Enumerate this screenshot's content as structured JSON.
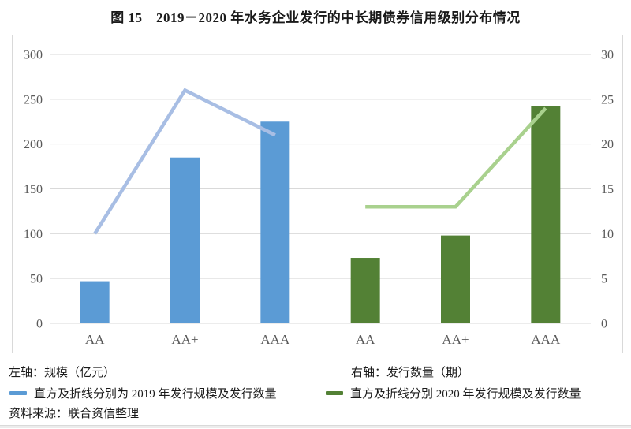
{
  "figure": {
    "title": "图 15　2019－2020 年水务企业发行的中长期债券信用级别分布情况",
    "left_axis_note": "左轴：规模（亿元）",
    "right_axis_note": "右轴：发行数量（期）",
    "source": "资料来源：联合资信整理"
  },
  "legend": {
    "items": [
      {
        "swatch_color": "#5b9bd5",
        "label": "直方及折线分别为 2019 年发行规模及发行数量"
      },
      {
        "swatch_color": "#538135",
        "label": "直方及折线分别 2020 年发行规模及发行数量"
      }
    ]
  },
  "chart_data": {
    "type": "bar",
    "subtype": "dual-axis bar+line combo",
    "title": "图 15　2019－2020 年水务企业发行的中长期债券信用级别分布情况",
    "categories": [
      "AA",
      "AA+",
      "AAA",
      "AA",
      "AA+",
      "AAA"
    ],
    "left_axis": {
      "label": "规模（亿元）",
      "range": [
        0,
        300
      ],
      "ticks": [
        0,
        50,
        100,
        150,
        200,
        250,
        300
      ]
    },
    "right_axis": {
      "label": "发行数量（期）",
      "range": [
        0,
        30
      ],
      "ticks": [
        0,
        5,
        10,
        15,
        20,
        25,
        30
      ]
    },
    "grid": "horizontal gridlines on, light gray",
    "legend_position": "below chart",
    "series": [
      {
        "name": "2019 年发行规模（直方，左轴）",
        "kind": "bar",
        "axis": "left",
        "color": "#5b9bd5",
        "slots": [
          0,
          1,
          2
        ],
        "values": [
          47,
          185,
          225
        ]
      },
      {
        "name": "2019 年发行数量（折线，右轴）",
        "kind": "line",
        "axis": "right",
        "color": "#a8bee4",
        "slots": [
          0,
          1,
          2
        ],
        "values": [
          10,
          26,
          21
        ]
      },
      {
        "name": "2020 年发行规模（直方，左轴）",
        "kind": "bar",
        "axis": "left",
        "color": "#538135",
        "slots": [
          3,
          4,
          5
        ],
        "values": [
          73,
          98,
          242
        ]
      },
      {
        "name": "2020 年发行数量（折线，右轴）",
        "kind": "line",
        "axis": "right",
        "color": "#a9d18e",
        "slots": [
          3,
          4,
          5
        ],
        "values": [
          13,
          13,
          24
        ]
      }
    ],
    "colors": {
      "bar_2019": "#5b9bd5",
      "line_2019": "#a8bee4",
      "bar_2020": "#538135",
      "line_2020": "#a9d18e",
      "gridline": "#d9d9d9",
      "axis_text": "#595959",
      "frame_border": "#d9d9d9"
    }
  }
}
